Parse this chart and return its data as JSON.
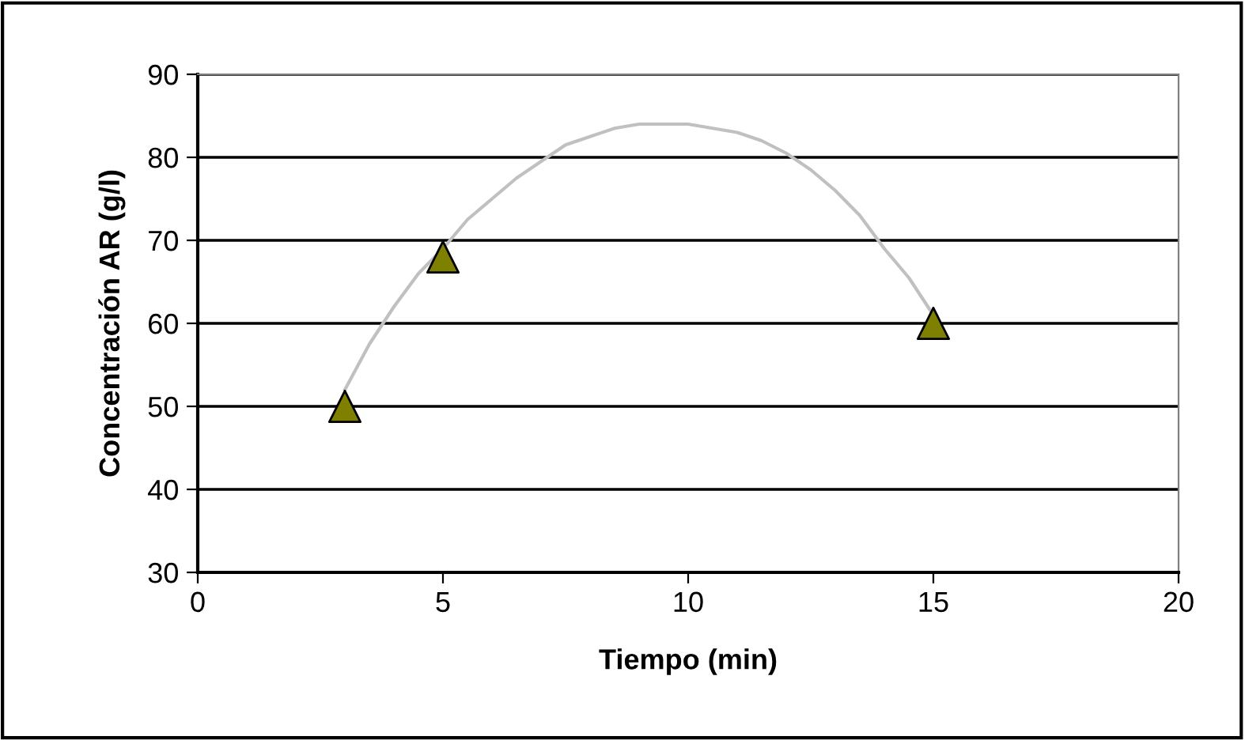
{
  "chart_data": {
    "type": "scatter",
    "xlabel": "Tiempo (min)",
    "ylabel": "Concentración AR (g/l)",
    "xlim": [
      0,
      20
    ],
    "xticks": [
      0,
      5,
      10,
      15,
      20
    ],
    "ylim": [
      30,
      90
    ],
    "yticks": [
      30,
      40,
      50,
      60,
      70,
      80,
      90
    ],
    "grid": "y",
    "legend": false,
    "series": [
      {
        "type": "line",
        "color": "#c0c0c0",
        "marker": "none",
        "line_style": "solid",
        "x": [
          3,
          3.5,
          4,
          4.5,
          5,
          5.5,
          6,
          6.5,
          7,
          7.5,
          8,
          8.5,
          9,
          9.5,
          10,
          10.5,
          11,
          11.5,
          12,
          12.5,
          13,
          13.5,
          14,
          14.5,
          15
        ],
        "values": [
          52,
          57.5,
          62,
          66,
          69,
          72.5,
          75,
          77.5,
          79.5,
          81.5,
          82.5,
          83.5,
          84,
          84,
          84,
          83.5,
          83,
          82,
          80.5,
          78.5,
          76,
          73,
          69,
          65.5,
          61
        ]
      },
      {
        "color": "#808000",
        "marker": "triangle",
        "x": [
          3,
          5,
          15
        ],
        "values": [
          50,
          68,
          60
        ]
      }
    ]
  }
}
